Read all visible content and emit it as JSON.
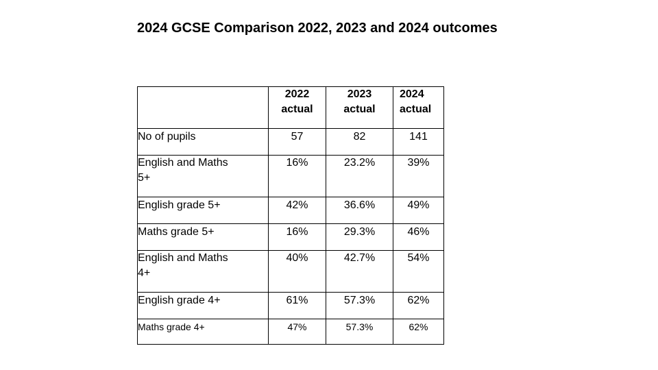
{
  "title": "2024 GCSE Comparison 2022, 2023 and 2024 outcomes",
  "table": {
    "headers": [
      "",
      [
        "2022",
        "actual"
      ],
      [
        "2023",
        "actual"
      ],
      [
        "2024",
        "actual"
      ]
    ],
    "rows": [
      {
        "label": "No of pupils",
        "values": [
          "57",
          "82",
          "141"
        ]
      },
      {
        "label": [
          "English and Maths",
          "5+"
        ],
        "values": [
          "16%",
          "23.2%",
          "39%"
        ]
      },
      {
        "label": "English grade 5+",
        "values": [
          "42%",
          "36.6%",
          "49%"
        ]
      },
      {
        "label": "Maths grade 5+",
        "values": [
          "16%",
          "29.3%",
          "46%"
        ]
      },
      {
        "label": [
          "English and Maths",
          "4+"
        ],
        "values": [
          "40%",
          "42.7%",
          "54%"
        ]
      },
      {
        "label": "English grade 4+",
        "values": [
          "61%",
          "57.3%",
          "62%"
        ]
      },
      {
        "label": "Maths grade 4+",
        "values": [
          "47%",
          "57.3%",
          "62%"
        ]
      }
    ]
  }
}
